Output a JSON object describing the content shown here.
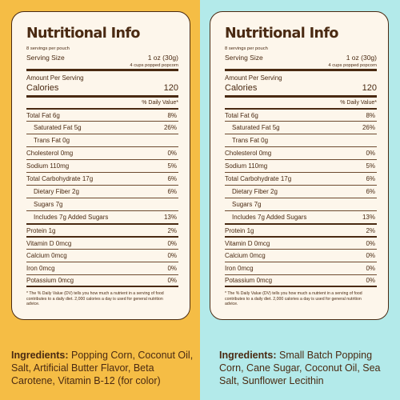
{
  "panels": [
    {
      "title": "Nutritional Info",
      "servings": "8 servings per pouch",
      "serving_size_label": "Serving Size",
      "serving_size_value": "1 oz (30g)",
      "cups": "4 cups popped popcorn",
      "amount_per_serving": "Amount Per Serving",
      "calories_label": "Calories",
      "calories_value": "120",
      "dv_header": "% Daily Value*",
      "nutrients": [
        {
          "label": "Total Fat 6g",
          "value": "8%"
        },
        {
          "label": "Saturated Fat 5g",
          "value": "26%"
        },
        {
          "label": "Trans Fat 0g",
          "value": ""
        },
        {
          "label": "Cholesterol 0mg",
          "value": "0%"
        },
        {
          "label": "Sodium 110mg",
          "value": "5%"
        },
        {
          "label": "Total Carbohydrate 17g",
          "value": "6%"
        },
        {
          "label": "Dietary Fiber 2g",
          "value": "6%"
        },
        {
          "label": "Sugars 7g",
          "value": ""
        },
        {
          "label": "Includes 7g Added Sugars",
          "value": "13%"
        },
        {
          "label": "Protein 1g",
          "value": "2%"
        },
        {
          "label": "Vitamin D 0mcg",
          "value": "0%"
        },
        {
          "label": "Calcium 0mcg",
          "value": "0%"
        },
        {
          "label": "Iron 0mcg",
          "value": "0%"
        },
        {
          "label": "Potassium 0mcg",
          "value": "0%"
        }
      ],
      "footnote": "* The % Daily Value (DV) tells you how much a nutrient in a serving of food contributes to a daily diet. 2,000 calories a day is used for general nutrition advice.",
      "ingredients_label": "Ingredients:",
      "ingredients_text": " Popping Corn, Coconut Oil, Salt, Artificial Butter Flavor, Beta Carotene, Vitamin B-12 (for color)"
    },
    {
      "title": "Nutritional Info",
      "servings": "8 servings per pouch",
      "serving_size_label": "Serving Size",
      "serving_size_value": "1 oz (30g)",
      "cups": "4 cups popped popcorn",
      "amount_per_serving": "Amount Per Serving",
      "calories_label": "Calories",
      "calories_value": "120",
      "dv_header": "% Daily Value*",
      "nutrients": [
        {
          "label": "Total Fat 6g",
          "value": "8%"
        },
        {
          "label": "Saturated Fat 5g",
          "value": "26%"
        },
        {
          "label": "Trans Fat 0g",
          "value": ""
        },
        {
          "label": "Cholesterol 0mg",
          "value": "0%"
        },
        {
          "label": "Sodium 110mg",
          "value": "5%"
        },
        {
          "label": "Total Carbohydrate 17g",
          "value": "6%"
        },
        {
          "label": "Dietary Fiber 2g",
          "value": "6%"
        },
        {
          "label": "Sugars 7g",
          "value": ""
        },
        {
          "label": "Includes 7g Added Sugars",
          "value": "13%"
        },
        {
          "label": "Protein 1g",
          "value": "2%"
        },
        {
          "label": "Vitamin D 0mcg",
          "value": "0%"
        },
        {
          "label": "Calcium 0mcg",
          "value": "0%"
        },
        {
          "label": "Iron 0mcg",
          "value": "0%"
        },
        {
          "label": "Potassium 0mcg",
          "value": "0%"
        }
      ],
      "footnote": "* The % Daily Value (DV) tells you how much a nutrient in a serving of food contributes to a daily diet. 2,000 calories a day is used for general nutrition advice.",
      "ingredients_label": "Ingredients:",
      "ingredients_text": " Small Batch Popping Corn, Cane Sugar, Coconut Oil, Sea Salt, Sunflower Lecithin"
    }
  ],
  "colors": {
    "left_background": "#f5bd45",
    "right_background": "#b3eaea",
    "panel_background": "#fdf6eb",
    "text_brown": "#4a2a12"
  }
}
